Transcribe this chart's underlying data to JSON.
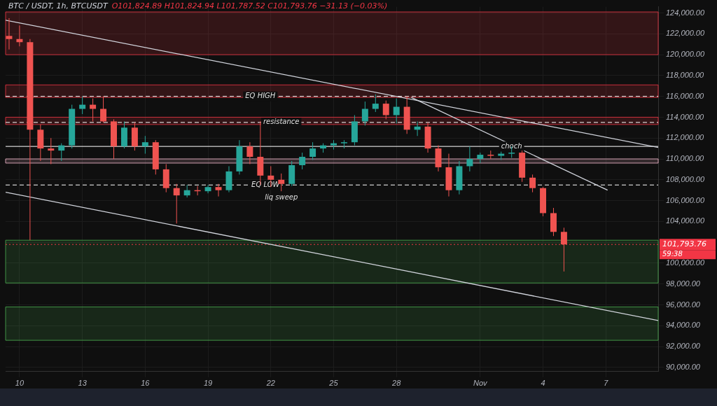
{
  "chart_data": {
    "type": "candlestick",
    "title": "BTC / USDT, 1h, BTCUSDT",
    "subtitle": "O101,824.89 H101,824.94 L101,787.52 C101,793.76 −31.13 (−0.03%)",
    "x": [
      "--10-09T12:00",
      "--10-10T00:00",
      "--10-10T12:00",
      "--10-11T00:00",
      "--10-11T12:00",
      "--10-12T00:00",
      "--10-12T12:00",
      "--10-13T00:00",
      "--10-13T12:00",
      "--10-14T00:00",
      "--10-14T12:00",
      "--10-15T00:00",
      "--10-15T12:00",
      "--10-16T00:00",
      "--10-16T12:00",
      "--10-17T00:00",
      "--10-17T12:00",
      "--10-18T00:00",
      "--10-18T12:00",
      "--10-19T00:00",
      "--10-19T12:00",
      "--10-20T00:00",
      "--10-20T12:00",
      "--10-21T00:00",
      "--10-21T12:00",
      "--10-22T00:00",
      "--10-22T12:00",
      "--10-23T00:00",
      "--10-23T12:00",
      "--10-24T00:00",
      "--10-24T12:00",
      "--10-25T00:00",
      "--10-25T12:00",
      "--10-26T00:00",
      "--10-26T12:00",
      "--10-27T00:00",
      "--10-27T12:00",
      "--10-28T00:00",
      "--10-28T12:00",
      "--10-29T00:00",
      "--10-29T12:00",
      "--10-30T00:00",
      "--10-30T12:00",
      "--10-31T00:00",
      "--10-31T12:00",
      "--11-01T00:00",
      "--11-01T12:00",
      "--11-02T00:00",
      "--11-02T12:00",
      "--11-03T00:00",
      "--11-03T12:00",
      "--11-04T00:00",
      "--11-04T12:00",
      "--11-05T00:00"
    ],
    "ohlc": [
      [
        121800,
        123500,
        120500,
        121500
      ],
      [
        121500,
        122800,
        120800,
        121200
      ],
      [
        121200,
        121500,
        102200,
        112800
      ],
      [
        112800,
        113300,
        109800,
        111000
      ],
      [
        111000,
        112000,
        109500,
        110800
      ],
      [
        110800,
        111500,
        109800,
        111300
      ],
      [
        111300,
        115200,
        111000,
        114800
      ],
      [
        114800,
        116000,
        114300,
        115200
      ],
      [
        115200,
        115800,
        113600,
        114800
      ],
      [
        114800,
        116000,
        113500,
        113600
      ],
      [
        113600,
        113800,
        110000,
        111200
      ],
      [
        111200,
        113600,
        111000,
        113000
      ],
      [
        113000,
        113500,
        110800,
        111200
      ],
      [
        111200,
        112200,
        110500,
        111600
      ],
      [
        111600,
        111800,
        108500,
        109000
      ],
      [
        109000,
        109500,
        106800,
        107200
      ],
      [
        107200,
        107600,
        103800,
        106500
      ],
      [
        106500,
        107500,
        106300,
        107000
      ],
      [
        107000,
        107400,
        106500,
        106900
      ],
      [
        106900,
        107500,
        106700,
        107300
      ],
      [
        107300,
        107600,
        106400,
        107000
      ],
      [
        107000,
        109300,
        106800,
        108800
      ],
      [
        108800,
        111800,
        108500,
        111200
      ],
      [
        111200,
        111600,
        109500,
        110200
      ],
      [
        110200,
        113600,
        107500,
        108400
      ],
      [
        108400,
        109300,
        107300,
        108000
      ],
      [
        108000,
        108600,
        106900,
        107600
      ],
      [
        107600,
        109800,
        107400,
        109400
      ],
      [
        109400,
        110600,
        109000,
        110200
      ],
      [
        110200,
        111600,
        109900,
        111000
      ],
      [
        111000,
        111500,
        110600,
        111300
      ],
      [
        111300,
        111800,
        110900,
        111500
      ],
      [
        111500,
        111800,
        111000,
        111600
      ],
      [
        111600,
        114200,
        111300,
        113600
      ],
      [
        113600,
        115500,
        113200,
        114800
      ],
      [
        114800,
        116200,
        114500,
        115300
      ],
      [
        115300,
        115600,
        113800,
        114200
      ],
      [
        114200,
        115800,
        113400,
        115000
      ],
      [
        115000,
        116000,
        112400,
        112800
      ],
      [
        112800,
        113600,
        112200,
        113100
      ],
      [
        113100,
        113500,
        110600,
        111000
      ],
      [
        111000,
        111300,
        108800,
        109200
      ],
      [
        109200,
        110500,
        106400,
        107000
      ],
      [
        107000,
        109800,
        106600,
        109300
      ],
      [
        109300,
        111200,
        108800,
        110000
      ],
      [
        110000,
        110600,
        109600,
        110400
      ],
      [
        110400,
        110800,
        110000,
        110300
      ],
      [
        110300,
        110700,
        109900,
        110500
      ],
      [
        110500,
        111200,
        110100,
        110600
      ],
      [
        110600,
        110800,
        107800,
        108200
      ],
      [
        108200,
        108500,
        106800,
        107200
      ],
      [
        107200,
        107300,
        104500,
        104800
      ],
      [
        104800,
        105300,
        102600,
        103000
      ],
      [
        103000,
        103400,
        99200,
        101800
      ]
    ],
    "colors": [
      "#ef5350",
      "#ef5350",
      "#ef5350",
      "#ef5350",
      "#ef5350",
      "#26a69a",
      "#26a69a",
      "#26a69a",
      "#ef5350",
      "#ef5350",
      "#ef5350",
      "#26a69a",
      "#ef5350",
      "#26a69a",
      "#ef5350",
      "#ef5350",
      "#ef5350",
      "#26a69a",
      "#ef5350",
      "#26a69a",
      "#ef5350",
      "#26a69a",
      "#26a69a",
      "#ef5350",
      "#ef5350",
      "#ef5350",
      "#ef5350",
      "#26a69a",
      "#26a69a",
      "#26a69a",
      "#26a69a",
      "#26a69a",
      "#26a69a",
      "#26a69a",
      "#26a69a",
      "#26a69a",
      "#ef5350",
      "#26a69a",
      "#ef5350",
      "#26a69a",
      "#ef5350",
      "#ef5350",
      "#ef5350",
      "#26a69a",
      "#26a69a",
      "#26a69a",
      "#ef5350",
      "#26a69a",
      "#26a69a",
      "#ef5350",
      "#ef5350",
      "#ef5350",
      "#ef5350",
      "#ef5350"
    ],
    "series": [
      {
        "type": "line",
        "color": "#d1d4dc",
        "x": [
          "--10-09T08:00",
          "--11-09T12:00"
        ],
        "values": [
          123300,
          111100
        ]
      },
      {
        "type": "line",
        "color": "#d1d4dc",
        "x": [
          "--10-28T17:00",
          "--11-07T02:00"
        ],
        "values": [
          115900,
          107000
        ]
      },
      {
        "type": "line",
        "color": "#d1d4dc",
        "x": [
          "--10-09T08:00",
          "--11-09T12:00"
        ],
        "values": [
          106800,
          94500
        ]
      }
    ],
    "bands": [
      {
        "axis": "y",
        "from": 120000,
        "to": 124100,
        "color": "#f23645"
      },
      {
        "axis": "y",
        "from": 115900,
        "to": 117100,
        "color": "#f23645"
      },
      {
        "axis": "y",
        "from": 113300,
        "to": 114000,
        "color": "#f23645"
      },
      {
        "axis": "y",
        "from": 109600,
        "to": 110000,
        "color": "#f8bbd0"
      },
      {
        "axis": "y",
        "from": 98100,
        "to": 102200,
        "color": "#4caf50"
      },
      {
        "axis": "y",
        "from": 92600,
        "to": 95800,
        "color": "#4caf50"
      }
    ],
    "ref_lines": [
      {
        "axis": "y",
        "value": 116000,
        "color": "#ffffff",
        "line_style": "dashed"
      },
      {
        "axis": "y",
        "value": 113500,
        "color": "#ffffff",
        "line_style": "dashed"
      },
      {
        "axis": "y",
        "value": 107500,
        "color": "#ffffff",
        "line_style": "dashed"
      },
      {
        "axis": "y",
        "value": 111200,
        "color": "#ffffff",
        "line_style": "solid"
      },
      {
        "axis": "y",
        "value": 101793.76,
        "label": "101,793.76",
        "color": "#f23645",
        "line_style": "dotted"
      }
    ],
    "annotations": [
      {
        "text": "EQ HIGH",
        "x": "--10-21T12:00",
        "y": 116000
      },
      {
        "text": "resistance",
        "x": "--10-22T12:00",
        "y": 113500
      },
      {
        "text": "EQ LOW",
        "x": "--10-21T18:00",
        "y": 107500
      },
      {
        "text": "liq sweep",
        "x": "--10-22T12:00",
        "y": 106900
      },
      {
        "text": "choch",
        "x": "--11-02T12:00",
        "y": 111200
      },
      "59:38"
    ],
    "xlim": [
      "--10-09T08:00",
      "--11-09T12:00"
    ],
    "xticks": [
      {
        "value": "--10-10",
        "label": "10"
      },
      {
        "value": "--10-13",
        "label": "13"
      },
      {
        "value": "--10-16",
        "label": "16"
      },
      {
        "value": "--10-19",
        "label": "19"
      },
      {
        "value": "--10-22",
        "label": "22"
      },
      {
        "value": "--10-25",
        "label": "25"
      },
      {
        "value": "--10-28",
        "label": "28"
      },
      {
        "value": "--11-01",
        "label": "Nov"
      },
      {
        "value": "--11-04",
        "label": "4"
      },
      {
        "value": "--11-07",
        "label": "7"
      }
    ],
    "ylim": [
      89600,
      124600
    ],
    "yticks": [
      {
        "value": 90000,
        "label": "90,000.00"
      },
      {
        "value": 92000,
        "label": "92,000.00"
      },
      {
        "value": 94000,
        "label": "94,000.00"
      },
      {
        "value": 96000,
        "label": "96,000.00"
      },
      {
        "value": 98000,
        "label": "98,000.00"
      },
      {
        "value": 100000,
        "label": "100,000.00"
      },
      {
        "value": 102000,
        "label": null
      },
      {
        "value": 104000,
        "label": "104,000.00"
      },
      {
        "value": 106000,
        "label": "106,000.00"
      },
      {
        "value": 108000,
        "label": "108,000.00"
      },
      {
        "value": 110000,
        "label": "110,000.00"
      },
      {
        "value": 112000,
        "label": "112,000.00"
      },
      {
        "value": 114000,
        "label": "114,000.00"
      },
      {
        "value": 116000,
        "label": "116,000.00"
      },
      {
        "value": 118000,
        "label": "118,000.00"
      },
      {
        "value": 120000,
        "label": "120,000.00"
      },
      {
        "value": 122000,
        "label": "122,000.00"
      },
      {
        "value": 124000,
        "label": "124,000.00"
      }
    ],
    "grid": true,
    "legend": false
  }
}
